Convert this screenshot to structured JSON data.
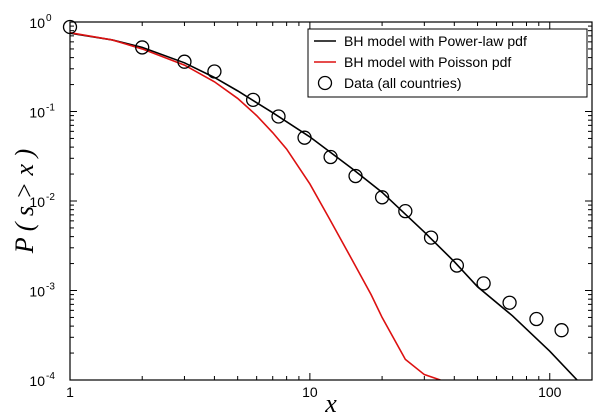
{
  "chart_data": {
    "type": "line",
    "title": "",
    "xlabel": "x",
    "ylabel": "P ( s > x )",
    "xscale": "log",
    "yscale": "log",
    "xlim": [
      1,
      150
    ],
    "ylim": [
      0.0001,
      1
    ],
    "x_ticks": [
      {
        "value": 1,
        "label": "1"
      },
      {
        "value": 10,
        "label": "10"
      },
      {
        "value": 100,
        "label": "100"
      }
    ],
    "y_ticks": [
      {
        "value": 1,
        "base": "10",
        "exp": "0"
      },
      {
        "value": 0.1,
        "base": "10",
        "exp": "-1"
      },
      {
        "value": 0.01,
        "base": "10",
        "exp": "-2"
      },
      {
        "value": 0.001,
        "base": "10",
        "exp": "-3"
      },
      {
        "value": 0.0001,
        "base": "10",
        "exp": "-4"
      }
    ],
    "grid": false,
    "legend_position": "top-right",
    "series": [
      {
        "name": "BH model with Power-law pdf",
        "kind": "line",
        "color": "#000000",
        "x": [
          1,
          1.5,
          2,
          3,
          4,
          5,
          7,
          10,
          15,
          20,
          30,
          40,
          50,
          70,
          100,
          130
        ],
        "y": [
          0.75,
          0.63,
          0.52,
          0.35,
          0.24,
          0.17,
          0.097,
          0.052,
          0.023,
          0.0125,
          0.0045,
          0.0021,
          0.0011,
          0.00052,
          0.00021,
          0.0001
        ]
      },
      {
        "name": "BH model with Poisson pdf",
        "kind": "line",
        "color": "#dd1111",
        "x": [
          1,
          1.5,
          2,
          3,
          4,
          5,
          6,
          7,
          8,
          10,
          12,
          15,
          18,
          20,
          25,
          30,
          35
        ],
        "y": [
          0.76,
          0.63,
          0.5,
          0.33,
          0.215,
          0.14,
          0.09,
          0.058,
          0.038,
          0.0155,
          0.0065,
          0.0022,
          0.0009,
          0.0005,
          0.00017,
          0.000115,
          0.0001
        ]
      },
      {
        "name": "Data (all countries)",
        "kind": "scatter",
        "marker": "open-circle",
        "color": "#000000",
        "x": [
          1,
          2,
          3,
          4,
          5.8,
          7.4,
          9.5,
          12.2,
          15.5,
          20,
          25,
          32,
          41,
          53,
          68,
          88,
          112
        ],
        "y": [
          0.88,
          0.52,
          0.36,
          0.28,
          0.135,
          0.088,
          0.051,
          0.031,
          0.019,
          0.011,
          0.0077,
          0.0039,
          0.0019,
          0.0012,
          0.00073,
          0.00048,
          0.00036
        ]
      }
    ]
  }
}
